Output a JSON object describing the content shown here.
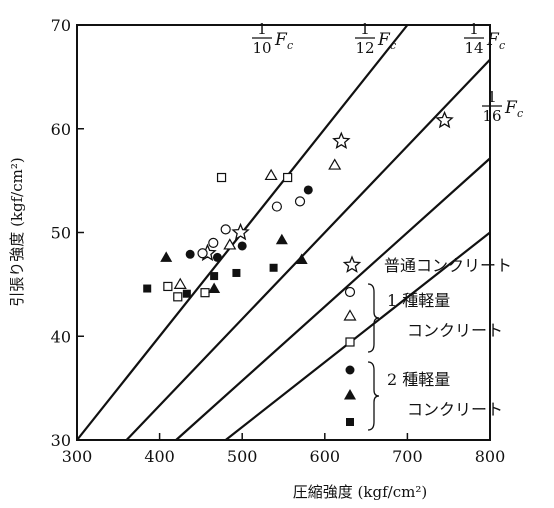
{
  "chart_data": {
    "type": "scatter",
    "title": "",
    "xlabel": "圧縮強度 (kgf/cm²)",
    "ylabel": "引張り強度 (kgf/cm²)",
    "xlim": [
      300,
      800
    ],
    "ylim": [
      30,
      70
    ],
    "xticks": [
      "300",
      "400",
      "500",
      "600",
      "700",
      "800"
    ],
    "yticks": [
      "30",
      "40",
      "50",
      "60",
      "70"
    ],
    "grid": false,
    "lines": [
      {
        "label_num": "1",
        "label_den": "10",
        "label_var": "F",
        "label_sub": "c",
        "slope": 0.1
      },
      {
        "label_num": "1",
        "label_den": "12",
        "label_var": "F",
        "label_sub": "c",
        "slope": 0.08333
      },
      {
        "label_num": "1",
        "label_den": "14",
        "label_var": "F",
        "label_sub": "c",
        "slope": 0.07143
      },
      {
        "label_num": "1",
        "label_den": "16",
        "label_var": "F",
        "label_sub": "c",
        "slope": 0.0625
      }
    ],
    "series": [
      {
        "name": "普通コンクリート",
        "marker": "star",
        "points": [
          [
            458,
            48.0
          ],
          [
            498,
            50.0
          ],
          [
            620,
            58.8
          ],
          [
            745,
            60.8
          ]
        ]
      },
      {
        "name": "",
        "marker": "circle-open",
        "points": [
          [
            452,
            48.0
          ],
          [
            465,
            49.0
          ],
          [
            480,
            50.3
          ],
          [
            542,
            52.5
          ],
          [
            570,
            53.0
          ]
        ]
      },
      {
        "name": "",
        "marker": "triangle-open",
        "points": [
          [
            425,
            45.0
          ],
          [
            485,
            48.8
          ],
          [
            535,
            55.5
          ],
          [
            612,
            56.5
          ]
        ]
      },
      {
        "name": "",
        "marker": "square-open",
        "points": [
          [
            410,
            44.8
          ],
          [
            422,
            43.8
          ],
          [
            455,
            44.2
          ],
          [
            475,
            55.3
          ],
          [
            555,
            55.3
          ]
        ]
      },
      {
        "name": "",
        "marker": "circle-filled",
        "points": [
          [
            437,
            47.9
          ],
          [
            470,
            47.6
          ],
          [
            500,
            48.7
          ],
          [
            580,
            54.1
          ]
        ]
      },
      {
        "name": "",
        "marker": "triangle-filled",
        "points": [
          [
            408,
            47.6
          ],
          [
            466,
            44.6
          ],
          [
            548,
            49.3
          ],
          [
            572,
            47.4
          ]
        ]
      },
      {
        "name": "",
        "marker": "square-filled",
        "points": [
          [
            385,
            44.6
          ],
          [
            433,
            44.1
          ],
          [
            466,
            45.8
          ],
          [
            493,
            46.1
          ],
          [
            538,
            46.6
          ]
        ]
      }
    ]
  },
  "legend": {
    "star_label": "普通コンクリート",
    "group1_line1": "1 種軽量",
    "group1_line2": "コンクリート",
    "group2_line1": "2 種軽量",
    "group2_line2": "コンクリート"
  }
}
